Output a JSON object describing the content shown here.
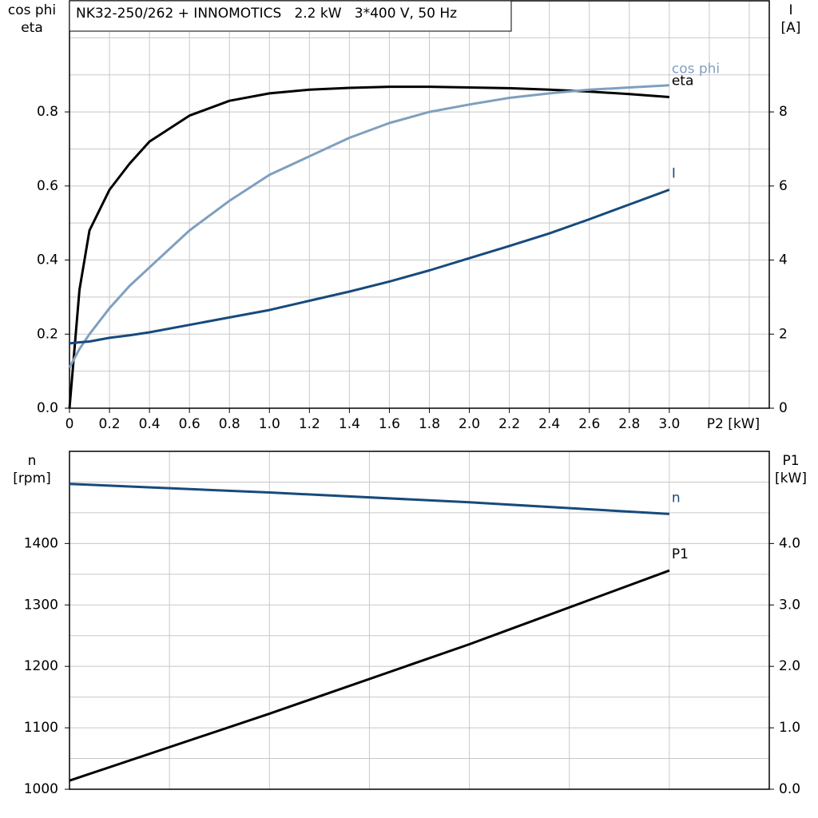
{
  "chart_data": [
    {
      "type": "line",
      "title": "NK32-250/262 + INNOMOTICS   2.2 kW   3*400 V, 50 Hz",
      "ylabel": [
        "cos phi",
        "eta"
      ],
      "y2label": [
        "I",
        "[A]"
      ],
      "xlabel": "P2 [kW]",
      "xlim": [
        0,
        3.5
      ],
      "xticks": [
        0,
        0.2,
        0.4,
        0.6,
        0.8,
        {
          "value": 1,
          "label": "1.0"
        },
        1.2,
        1.4,
        1.6,
        1.8,
        {
          "value": 2,
          "label": "2.0"
        },
        2.2,
        2.4,
        2.6,
        2.8,
        {
          "value": 3,
          "label": "3.0"
        }
      ],
      "xgrid": [
        0.2,
        0.4,
        0.6,
        0.8,
        1,
        1.2,
        1.4,
        1.6,
        1.8,
        2,
        2.2,
        2.4,
        2.6,
        2.8,
        3,
        3.2,
        3.4
      ],
      "ylim": [
        0,
        1.1
      ],
      "yticks": [
        {
          "value": 0,
          "label": "0.0"
        },
        0.2,
        0.4,
        0.6,
        0.8
      ],
      "ygrid": [
        0.1,
        0.2,
        0.3,
        0.4,
        0.5,
        0.6,
        0.7,
        0.8,
        0.9,
        1.0
      ],
      "y2lim": [
        0,
        11
      ],
      "y2ticks": [
        0,
        2,
        4,
        6,
        8
      ],
      "grid": true,
      "x": [
        0,
        0.05,
        0.1,
        0.2,
        0.3,
        0.4,
        0.6,
        0.8,
        1.0,
        1.2,
        1.4,
        1.6,
        1.8,
        2.0,
        2.2,
        2.4,
        2.6,
        2.8,
        3.0
      ],
      "series": [
        {
          "name": "eta",
          "color": "#000000",
          "values": [
            0,
            0.32,
            0.48,
            0.59,
            0.66,
            0.72,
            0.79,
            0.83,
            0.85,
            0.86,
            0.865,
            0.868,
            0.868,
            0.866,
            0.864,
            0.86,
            0.855,
            0.848,
            0.84
          ]
        },
        {
          "name": "cos phi",
          "color": "#7f9fbf",
          "values": [
            0.11,
            0.16,
            0.2,
            0.27,
            0.33,
            0.38,
            0.48,
            0.56,
            0.63,
            0.68,
            0.73,
            0.77,
            0.8,
            0.82,
            0.838,
            0.85,
            0.86,
            0.866,
            0.872
          ]
        },
        {
          "name": "I",
          "color": "#174a7c",
          "axis": "y2",
          "values": [
            1.75,
            1.78,
            1.8,
            1.9,
            1.97,
            2.05,
            2.25,
            2.45,
            2.65,
            2.9,
            3.15,
            3.42,
            3.72,
            4.05,
            4.38,
            4.72,
            5.1,
            5.5,
            5.9
          ]
        }
      ]
    },
    {
      "type": "line",
      "ylabel": [
        "n",
        "[rpm]"
      ],
      "y2label": [
        "P1",
        "[kW]"
      ],
      "xlim": [
        0,
        3.5
      ],
      "xgrid": [
        0.5,
        1,
        1.5,
        2,
        2.5,
        3
      ],
      "ylim": [
        1000,
        1550
      ],
      "yticks": [
        1000,
        1100,
        1200,
        1300,
        1400
      ],
      "ygrid": [
        1050,
        1100,
        1150,
        1200,
        1250,
        1300,
        1350,
        1400,
        1450,
        1500
      ],
      "y2lim": [
        0,
        5.5
      ],
      "y2ticks": [
        {
          "value": 0,
          "label": "0.0"
        },
        {
          "value": 1,
          "label": "1.0"
        },
        {
          "value": 2,
          "label": "2.0"
        },
        {
          "value": 3,
          "label": "3.0"
        },
        {
          "value": 4,
          "label": "4.0"
        }
      ],
      "grid": true,
      "x": [
        0,
        1,
        2,
        3
      ],
      "series": [
        {
          "name": "n",
          "color": "#174a7c",
          "values": [
            1497,
            1483,
            1467,
            1448
          ]
        },
        {
          "name": "P1",
          "color": "#000000",
          "axis": "y2",
          "values": [
            0.14,
            1.23,
            2.36,
            3.56
          ]
        }
      ]
    }
  ]
}
